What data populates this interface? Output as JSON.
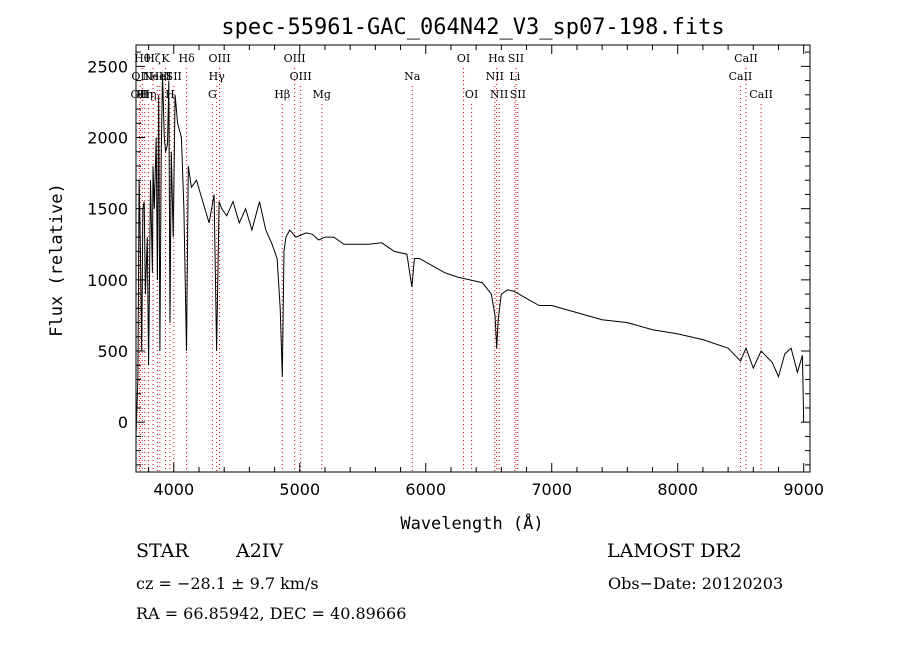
{
  "chart_data": {
    "type": "line",
    "title": "spec-55961-GAC_064N42_V3_sp07-198.fits",
    "xlabel": "Wavelength (Å)",
    "ylabel": "Flux (relative)",
    "xlim": [
      3700,
      9050
    ],
    "ylim": [
      -350,
      2650
    ],
    "xticks": [
      4000,
      5000,
      6000,
      7000,
      8000,
      9000
    ],
    "yticks": [
      0,
      500,
      1000,
      1500,
      2000,
      2500
    ],
    "grid": false,
    "series": [
      {
        "x": [
          3700,
          3715,
          3725,
          3735,
          3745,
          3755,
          3765,
          3775,
          3790,
          3800,
          3815,
          3830,
          3835,
          3845,
          3860,
          3870,
          3880,
          3890,
          3900,
          3910,
          3925,
          3935,
          3950,
          3960,
          3970,
          3980,
          3995,
          4010,
          4030,
          4060,
          4080,
          4101,
          4115,
          4140,
          4180,
          4230,
          4280,
          4320,
          4340,
          4360,
          4380,
          4420,
          4470,
          4520,
          4570,
          4620,
          4680,
          4730,
          4780,
          4820,
          4845,
          4861,
          4875,
          4890,
          4920,
          4970,
          5050,
          5100,
          5150,
          5200,
          5270,
          5350,
          5450,
          5550,
          5650,
          5750,
          5850,
          5890,
          5910,
          5950,
          6050,
          6150,
          6250,
          6350,
          6450,
          6520,
          6550,
          6563,
          6575,
          6600,
          6650,
          6700,
          6800,
          6900,
          7000,
          7200,
          7400,
          7600,
          7800,
          8000,
          8200,
          8400,
          8498,
          8542,
          8600,
          8662,
          8750,
          8800,
          8850,
          8900,
          8950,
          8990,
          9000
        ],
        "values": [
          -100,
          300,
          1700,
          1200,
          500,
          1500,
          1550,
          900,
          1300,
          400,
          1700,
          1050,
          1800,
          1500,
          2000,
          1000,
          2300,
          500,
          1850,
          2450,
          2000,
          1900,
          1950,
          2400,
          700,
          1900,
          1300,
          2300,
          2100,
          2000,
          1500,
          500,
          1800,
          1650,
          1700,
          1550,
          1400,
          1600,
          500,
          1550,
          1500,
          1450,
          1550,
          1400,
          1500,
          1350,
          1550,
          1350,
          1250,
          1150,
          800,
          320,
          1200,
          1300,
          1350,
          1300,
          1330,
          1320,
          1280,
          1300,
          1300,
          1250,
          1250,
          1250,
          1260,
          1200,
          1180,
          950,
          1150,
          1150,
          1100,
          1050,
          1020,
          1000,
          980,
          900,
          750,
          520,
          720,
          900,
          930,
          920,
          870,
          820,
          820,
          770,
          720,
          700,
          650,
          620,
          580,
          520,
          430,
          520,
          380,
          500,
          420,
          320,
          480,
          520,
          350,
          470,
          0
        ]
      }
    ],
    "line_markers": [
      {
        "wavelength": 3727,
        "label": "OII",
        "row": 2
      },
      {
        "wavelength": 3734,
        "label": "OII",
        "row": 1
      },
      {
        "wavelength": 3750,
        "label": "Hθ",
        "row": 0
      },
      {
        "wavelength": 3770,
        "label": "Hη",
        "row": 2
      },
      {
        "wavelength": 3798,
        "label": "Hη",
        "row": 2
      },
      {
        "wavelength": 3835,
        "label": "Hζ",
        "row": 0
      },
      {
        "wavelength": 3869,
        "label": "NeIII",
        "row": 1
      },
      {
        "wavelength": 3889,
        "label": "HeI",
        "row": 1
      },
      {
        "wavelength": 3934,
        "label": "K",
        "row": 0
      },
      {
        "wavelength": 3969,
        "label": "H",
        "row": 2
      },
      {
        "wavelength": 4000,
        "label": "SII",
        "row": 1
      },
      {
        "wavelength": 4102,
        "label": "Hδ",
        "row": 0
      },
      {
        "wavelength": 4306,
        "label": "G",
        "row": 2
      },
      {
        "wavelength": 4341,
        "label": "Hγ",
        "row": 1
      },
      {
        "wavelength": 4363,
        "label": "OIII",
        "row": 0
      },
      {
        "wavelength": 4861,
        "label": "Hβ",
        "row": 2
      },
      {
        "wavelength": 4959,
        "label": "OIII",
        "row": 0
      },
      {
        "wavelength": 5007,
        "label": "OIII",
        "row": 1
      },
      {
        "wavelength": 5175,
        "label": "Mg",
        "row": 2
      },
      {
        "wavelength": 5893,
        "label": "Na",
        "row": 1
      },
      {
        "wavelength": 6300,
        "label": "OI",
        "row": 0
      },
      {
        "wavelength": 6364,
        "label": "OI",
        "row": 2
      },
      {
        "wavelength": 6548,
        "label": "NII",
        "row": 1
      },
      {
        "wavelength": 6563,
        "label": "Hα",
        "row": 0
      },
      {
        "wavelength": 6583,
        "label": "NII",
        "row": 2
      },
      {
        "wavelength": 6707,
        "label": "Li",
        "row": 1
      },
      {
        "wavelength": 6716,
        "label": "SII",
        "row": 0
      },
      {
        "wavelength": 6731,
        "label": "SII",
        "row": 2
      },
      {
        "wavelength": 8498,
        "label": "CaII",
        "row": 1
      },
      {
        "wavelength": 8542,
        "label": "CaII",
        "row": 0
      },
      {
        "wavelength": 8662,
        "label": "CaII",
        "row": 2
      }
    ]
  },
  "info": {
    "object_class": "STAR",
    "subclass": "A2IV",
    "survey": "LAMOST DR2",
    "cz": "cz = −28.1 ± 9.7 km/s",
    "obs_date": "Obs−Date: 20120203",
    "coords": "RA =  66.85942, DEC =  40.89666"
  }
}
